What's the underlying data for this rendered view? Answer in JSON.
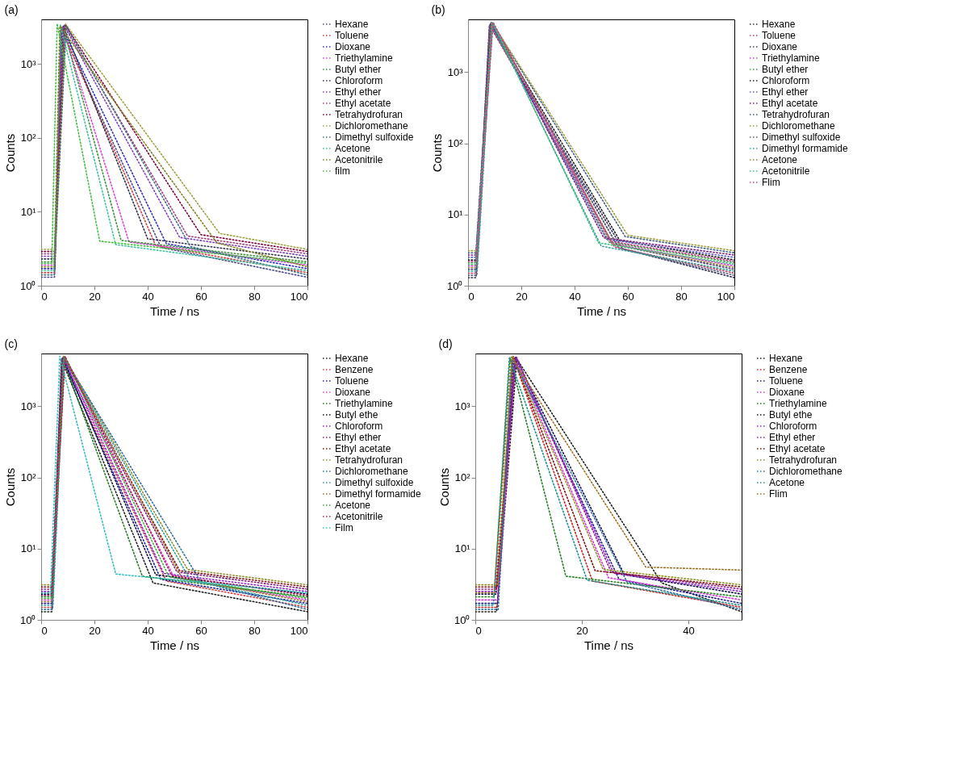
{
  "chart_data": [
    {
      "type": "line",
      "title": "(a)",
      "xlabel": "Time / ns",
      "ylabel": "Counts",
      "log": "y",
      "xlim": [
        0,
        100
      ],
      "xticks": [
        0,
        20,
        40,
        60,
        80,
        100
      ],
      "ylim": [
        1,
        4000
      ],
      "yticks": [
        {
          "value": 1,
          "label": "10⁰"
        },
        {
          "value": 10,
          "label": "10¹"
        },
        {
          "value": 100,
          "label": "10²"
        },
        {
          "value": 1000,
          "label": "10³"
        }
      ],
      "legend": "right",
      "line_style": "dotted",
      "grid": false,
      "series": [
        {
          "name": "Hexane",
          "color": "#4a4a8a",
          "x": [
            0,
            5,
            7.4,
            45,
            100
          ],
          "values": [
            1.3,
            1.3,
            3000,
            3.3,
            1.3
          ]
        },
        {
          "name": "Toluene",
          "color": "#d04040",
          "x": [
            0,
            5.1,
            7.6,
            43,
            100
          ],
          "values": [
            1.5,
            1.5,
            3050,
            3.5,
            1.5
          ]
        },
        {
          "name": "Dioxane",
          "color": "#3030c0",
          "x": [
            0,
            5.2,
            7.8,
            47,
            100
          ],
          "values": [
            1.7,
            1.7,
            3100,
            3.7,
            1.7
          ]
        },
        {
          "name": "Triethylamine",
          "color": "#e040e0",
          "x": [
            0,
            4.9,
            8,
            33,
            100
          ],
          "values": [
            1.9,
            1.9,
            3150,
            3.9,
            1.9
          ]
        },
        {
          "name": "Butyl ether",
          "color": "#409040",
          "x": [
            0,
            5,
            8.2,
            30,
            100
          ],
          "values": [
            2.1,
            2.1,
            3200,
            4.1,
            2.1
          ]
        },
        {
          "name": "Chloroform",
          "color": "#303050",
          "x": [
            0,
            5.1,
            8.4,
            40,
            100
          ],
          "values": [
            2.3,
            2.3,
            3250,
            4.3,
            2.3
          ]
        },
        {
          "name": "Ethyl ether",
          "color": "#8040c0",
          "x": [
            0,
            5.2,
            8.6,
            52,
            100
          ],
          "values": [
            2.5,
            2.5,
            3300,
            4.5,
            2.5
          ]
        },
        {
          "name": "Ethyl acetate",
          "color": "#a04080",
          "x": [
            0,
            5,
            8.8,
            55,
            100
          ],
          "values": [
            2.7,
            2.7,
            3350,
            4.7,
            2.7
          ]
        },
        {
          "name": "Tetrahydrofuran",
          "color": "#800040",
          "x": [
            0,
            5.1,
            9,
            60,
            100
          ],
          "values": [
            2.9,
            2.9,
            3400,
            4.9,
            2.9
          ]
        },
        {
          "name": "Dichloromethane",
          "color": "#a0a040",
          "x": [
            0,
            5.2,
            9.2,
            67,
            100
          ],
          "values": [
            3.1,
            3.1,
            3450,
            5.1,
            3.1
          ]
        },
        {
          "name": "Dimethyl sulfoxide",
          "color": "#407080",
          "x": [
            0,
            4.9,
            9.4,
            56,
            100
          ],
          "values": [
            1.4,
            1.4,
            3300,
            3.4,
            1.4
          ]
        },
        {
          "name": "Acetone",
          "color": "#40c0a0",
          "x": [
            0,
            4.8,
            7.2,
            28,
            100
          ],
          "values": [
            1.6,
            1.6,
            3350,
            3.6,
            1.6
          ]
        },
        {
          "name": "Acetonitrile",
          "color": "#808020",
          "x": [
            0,
            5,
            7,
            66,
            100
          ],
          "values": [
            1.8,
            1.8,
            3250,
            3.8,
            1.8
          ]
        },
        {
          "name": "film",
          "color": "#40c040",
          "x": [
            0,
            4,
            6,
            22,
            100
          ],
          "values": [
            2,
            2,
            3500,
            4,
            2
          ]
        }
      ]
    },
    {
      "type": "line",
      "title": "(b)",
      "xlabel": "Time / ns",
      "ylabel": "Counts",
      "log": "y",
      "xlim": [
        0,
        100
      ],
      "xticks": [
        0,
        20,
        40,
        60,
        80,
        100
      ],
      "ylim": [
        1,
        5500
      ],
      "yticks": [
        {
          "value": 1,
          "label": "10⁰"
        },
        {
          "value": 10,
          "label": "10¹"
        },
        {
          "value": 100,
          "label": "10²"
        },
        {
          "value": 1000,
          "label": "10³"
        }
      ],
      "legend": "right",
      "line_style": "dotted",
      "grid": false,
      "series": [
        {
          "name": "Hexane",
          "color": "#303060",
          "x": [
            0,
            3,
            8,
            58,
            100
          ],
          "values": [
            1.3,
            1.3,
            4600,
            3.3,
            1.3
          ]
        },
        {
          "name": "Toluene",
          "color": "#c04060",
          "x": [
            0,
            3.1,
            8.1,
            55,
            100
          ],
          "values": [
            1.5,
            1.5,
            4650,
            3.5,
            1.5
          ]
        },
        {
          "name": "Dioxane",
          "color": "#404080",
          "x": [
            0,
            3.2,
            8.2,
            56,
            100
          ],
          "values": [
            1.7,
            1.7,
            4700,
            3.7,
            1.7
          ]
        },
        {
          "name": "Triethylamine",
          "color": "#d040d0",
          "x": [
            0,
            3.3,
            8.3,
            54,
            100
          ],
          "values": [
            1.9,
            1.9,
            4750,
            3.9,
            1.9
          ]
        },
        {
          "name": "Butyl ether",
          "color": "#40a040",
          "x": [
            0,
            3.4,
            8.4,
            53,
            100
          ],
          "values": [
            2.1,
            2.1,
            4800,
            4.1,
            2.1
          ]
        },
        {
          "name": "Chloroform",
          "color": "#202020",
          "x": [
            0,
            2.9,
            8.5,
            57,
            100
          ],
          "values": [
            2.3,
            2.3,
            4850,
            4.3,
            2.3
          ]
        },
        {
          "name": "Ethyl ether",
          "color": "#6060c0",
          "x": [
            0,
            2.8,
            8.6,
            52,
            100
          ],
          "values": [
            2.5,
            2.5,
            4900,
            4.5,
            2.5
          ]
        },
        {
          "name": "Ethyl acetate",
          "color": "#802080",
          "x": [
            0,
            3,
            8.7,
            51,
            100
          ],
          "values": [
            2.7,
            2.7,
            4950,
            4.7,
            2.7
          ]
        },
        {
          "name": "Tetrahydrofuran",
          "color": "#406080",
          "x": [
            0,
            3.1,
            8.8,
            59,
            100
          ],
          "values": [
            2.9,
            2.9,
            5000,
            4.9,
            2.9
          ]
        },
        {
          "name": "Dichloromethane",
          "color": "#a0a040",
          "x": [
            0,
            3.2,
            8.9,
            60,
            100
          ],
          "values": [
            3.1,
            3.1,
            5050,
            5.1,
            3.1
          ]
        },
        {
          "name": "Dimethyl sulfoxide",
          "color": "#606080",
          "x": [
            0,
            3.3,
            9,
            56.5,
            100
          ],
          "values": [
            1.4,
            1.4,
            4800,
            3.4,
            1.4
          ]
        },
        {
          "name": "Dimethyl formamide",
          "color": "#40a0a0",
          "x": [
            0,
            3.4,
            9.1,
            50,
            100
          ],
          "values": [
            1.6,
            1.6,
            4850,
            3.6,
            1.6
          ]
        },
        {
          "name": "Acetone",
          "color": "#a08040",
          "x": [
            0,
            2.9,
            9.2,
            54.5,
            100
          ],
          "values": [
            1.8,
            1.8,
            4900,
            3.8,
            1.8
          ]
        },
        {
          "name": "Acetonitrile",
          "color": "#40c080",
          "x": [
            0,
            2.8,
            9.3,
            49,
            100
          ],
          "values": [
            2,
            2,
            4950,
            4,
            2
          ]
        },
        {
          "name": "Flim",
          "color": "#c04090",
          "x": [
            0,
            3,
            9.4,
            53.5,
            100
          ],
          "values": [
            2.2,
            2.2,
            5000,
            4.2,
            2.2
          ]
        }
      ]
    },
    {
      "type": "line",
      "title": "(c)",
      "xlabel": "Time / ns",
      "ylabel": "Counts",
      "log": "y",
      "xlim": [
        0,
        100
      ],
      "xticks": [
        0,
        20,
        40,
        60,
        80,
        100
      ],
      "ylim": [
        1,
        5500
      ],
      "yticks": [
        {
          "value": 1,
          "label": "10⁰"
        },
        {
          "value": 10,
          "label": "10¹"
        },
        {
          "value": 100,
          "label": "10²"
        },
        {
          "value": 1000,
          "label": "10³"
        }
      ],
      "legend": "right",
      "line_style": "dotted",
      "grid": false,
      "series": [
        {
          "name": "Hexane",
          "color": "#202020",
          "x": [
            0,
            4,
            7.6,
            42,
            100
          ],
          "values": [
            1.3,
            1.3,
            4600,
            3.3,
            1.3
          ]
        },
        {
          "name": "Benzene",
          "color": "#e04040",
          "x": [
            0,
            4.1,
            7.7,
            47,
            100
          ],
          "values": [
            1.5,
            1.5,
            4650,
            3.5,
            1.5
          ]
        },
        {
          "name": "Toluene",
          "color": "#2020a0",
          "x": [
            0,
            4.2,
            7.8,
            45,
            100
          ],
          "values": [
            1.7,
            1.7,
            4700,
            3.7,
            1.7
          ]
        },
        {
          "name": "Dioxane",
          "color": "#e040e0",
          "x": [
            0,
            4.3,
            7.9,
            50,
            100
          ],
          "values": [
            1.9,
            1.9,
            4750,
            3.9,
            1.9
          ]
        },
        {
          "name": "Triethylamine",
          "color": "#208020",
          "x": [
            0,
            4.4,
            8,
            38,
            100
          ],
          "values": [
            2.1,
            2.1,
            4800,
            4.1,
            2.1
          ]
        },
        {
          "name": "Butyl ethe",
          "color": "#101040",
          "x": [
            0,
            3.9,
            8.1,
            43,
            100
          ],
          "values": [
            2.3,
            2.3,
            4850,
            4.3,
            2.3
          ]
        },
        {
          "name": "Chloroform",
          "color": "#9020d0",
          "x": [
            0,
            3.8,
            8.2,
            46,
            100
          ],
          "values": [
            2.5,
            2.5,
            4900,
            4.5,
            2.5
          ]
        },
        {
          "name": "Ethyl ether",
          "color": "#802080",
          "x": [
            0,
            4,
            8.3,
            51,
            100
          ],
          "values": [
            2.7,
            2.7,
            4950,
            4.7,
            2.7
          ]
        },
        {
          "name": "Ethyl acetate",
          "color": "#801010",
          "x": [
            0,
            4.1,
            8.4,
            52,
            100
          ],
          "values": [
            2.9,
            2.9,
            5000,
            4.9,
            2.9
          ]
        },
        {
          "name": "Tetrahydrofuran",
          "color": "#909030",
          "x": [
            0,
            4.2,
            8.5,
            55,
            100
          ],
          "values": [
            3.1,
            3.1,
            5050,
            5.1,
            3.1
          ]
        },
        {
          "name": "Dichloromethane",
          "color": "#3070a0",
          "x": [
            0,
            4.3,
            8.6,
            60,
            100
          ],
          "values": [
            1.4,
            1.4,
            4800,
            3.4,
            1.4
          ]
        },
        {
          "name": "Dimethyl sulfoxide",
          "color": "#30a0a0",
          "x": [
            0,
            4.4,
            8.7,
            56,
            100
          ],
          "values": [
            1.6,
            1.6,
            4850,
            3.6,
            1.6
          ]
        },
        {
          "name": "Dimethyl formamide",
          "color": "#a07030",
          "x": [
            0,
            3.9,
            8.8,
            53,
            100
          ],
          "values": [
            1.8,
            1.8,
            4900,
            3.8,
            1.8
          ]
        },
        {
          "name": "Acetone",
          "color": "#40b040",
          "x": [
            0,
            3.8,
            8.9,
            48,
            100
          ],
          "values": [
            2,
            2,
            4950,
            4,
            2
          ]
        },
        {
          "name": "Acetonitrile",
          "color": "#b02060",
          "x": [
            0,
            4,
            9,
            49,
            100
          ],
          "values": [
            2.2,
            2.2,
            5000,
            4.2,
            2.2
          ]
        },
        {
          "name": "Film",
          "color": "#30c0c0",
          "x": [
            0,
            3.5,
            7,
            28,
            100
          ],
          "values": [
            2.4,
            2.4,
            5050,
            4.4,
            2.4
          ]
        }
      ]
    },
    {
      "type": "line",
      "title": "(d)",
      "xlabel": "Time / ns",
      "ylabel": "Counts",
      "log": "y",
      "xlim": [
        0,
        50
      ],
      "xticks": [
        0,
        20,
        40
      ],
      "ylim": [
        1,
        5500
      ],
      "yticks": [
        {
          "value": 1,
          "label": "10⁰"
        },
        {
          "value": 10,
          "label": "10¹"
        },
        {
          "value": 100,
          "label": "10²"
        },
        {
          "value": 1000,
          "label": "10³"
        }
      ],
      "legend": "right",
      "line_style": "dotted",
      "grid": false,
      "series": [
        {
          "name": "Hexane",
          "color": "#202020",
          "x": [
            0,
            4,
            7.8,
            35,
            50
          ],
          "values": [
            1.3,
            1.3,
            4600,
            3.3,
            1.3
          ]
        },
        {
          "name": "Benzene",
          "color": "#d02020",
          "x": [
            0,
            4.1,
            7.2,
            22,
            50
          ],
          "values": [
            1.5,
            1.5,
            4650,
            3.5,
            1.5
          ]
        },
        {
          "name": "Toluene",
          "color": "#202090",
          "x": [
            0,
            4.2,
            7.3,
            27,
            50
          ],
          "values": [
            1.7,
            1.7,
            4700,
            3.7,
            1.7
          ]
        },
        {
          "name": "Dioxane",
          "color": "#e030e0",
          "x": [
            0,
            4.3,
            7.4,
            25,
            50
          ],
          "values": [
            1.9,
            1.9,
            4750,
            3.9,
            1.9
          ]
        },
        {
          "name": "Triethylamine",
          "color": "#208020",
          "x": [
            0,
            3.5,
            6.5,
            17,
            50
          ],
          "values": [
            2.1,
            2.1,
            4800,
            4.1,
            2.1
          ]
        },
        {
          "name": "Butyl ethe",
          "color": "#101050",
          "x": [
            0,
            3.9,
            7.5,
            28,
            50
          ],
          "values": [
            2.3,
            2.3,
            4850,
            4.3,
            2.3
          ]
        },
        {
          "name": "Chloroform",
          "color": "#9020d0",
          "x": [
            0,
            3.8,
            7.6,
            26,
            50
          ],
          "values": [
            2.5,
            2.5,
            4900,
            4.5,
            2.5
          ]
        },
        {
          "name": "Ethyl ether",
          "color": "#902090",
          "x": [
            0,
            4,
            7.7,
            25.5,
            50
          ],
          "values": [
            2.7,
            2.7,
            4950,
            4.7,
            2.7
          ]
        },
        {
          "name": "Ethyl acetate",
          "color": "#801010",
          "x": [
            0,
            4.1,
            7.1,
            22.5,
            50
          ],
          "values": [
            2.9,
            2.9,
            5000,
            4.9,
            2.9
          ]
        },
        {
          "name": "Tetrahydrofuran",
          "color": "#909020",
          "x": [
            0,
            4.2,
            7,
            24,
            50
          ],
          "values": [
            3.1,
            3.1,
            5050,
            5.1,
            3.1
          ]
        },
        {
          "name": "Dichloromethane",
          "color": "#3070a0",
          "x": [
            0,
            4.3,
            6.9,
            28.5,
            50
          ],
          "values": [
            1.4,
            1.4,
            4800,
            3.4,
            1.4
          ]
        },
        {
          "name": "Acetone",
          "color": "#209090",
          "x": [
            0,
            3.4,
            6.4,
            21,
            50
          ],
          "values": [
            1.6,
            1.6,
            4850,
            3.6,
            1.6
          ]
        },
        {
          "name": "Flim",
          "color": "#a07020",
          "x": [
            0,
            3.6,
            6.8,
            32,
            50
          ],
          "values": [
            2.4,
            2.4,
            4900,
            5.5,
            5
          ]
        }
      ]
    }
  ]
}
